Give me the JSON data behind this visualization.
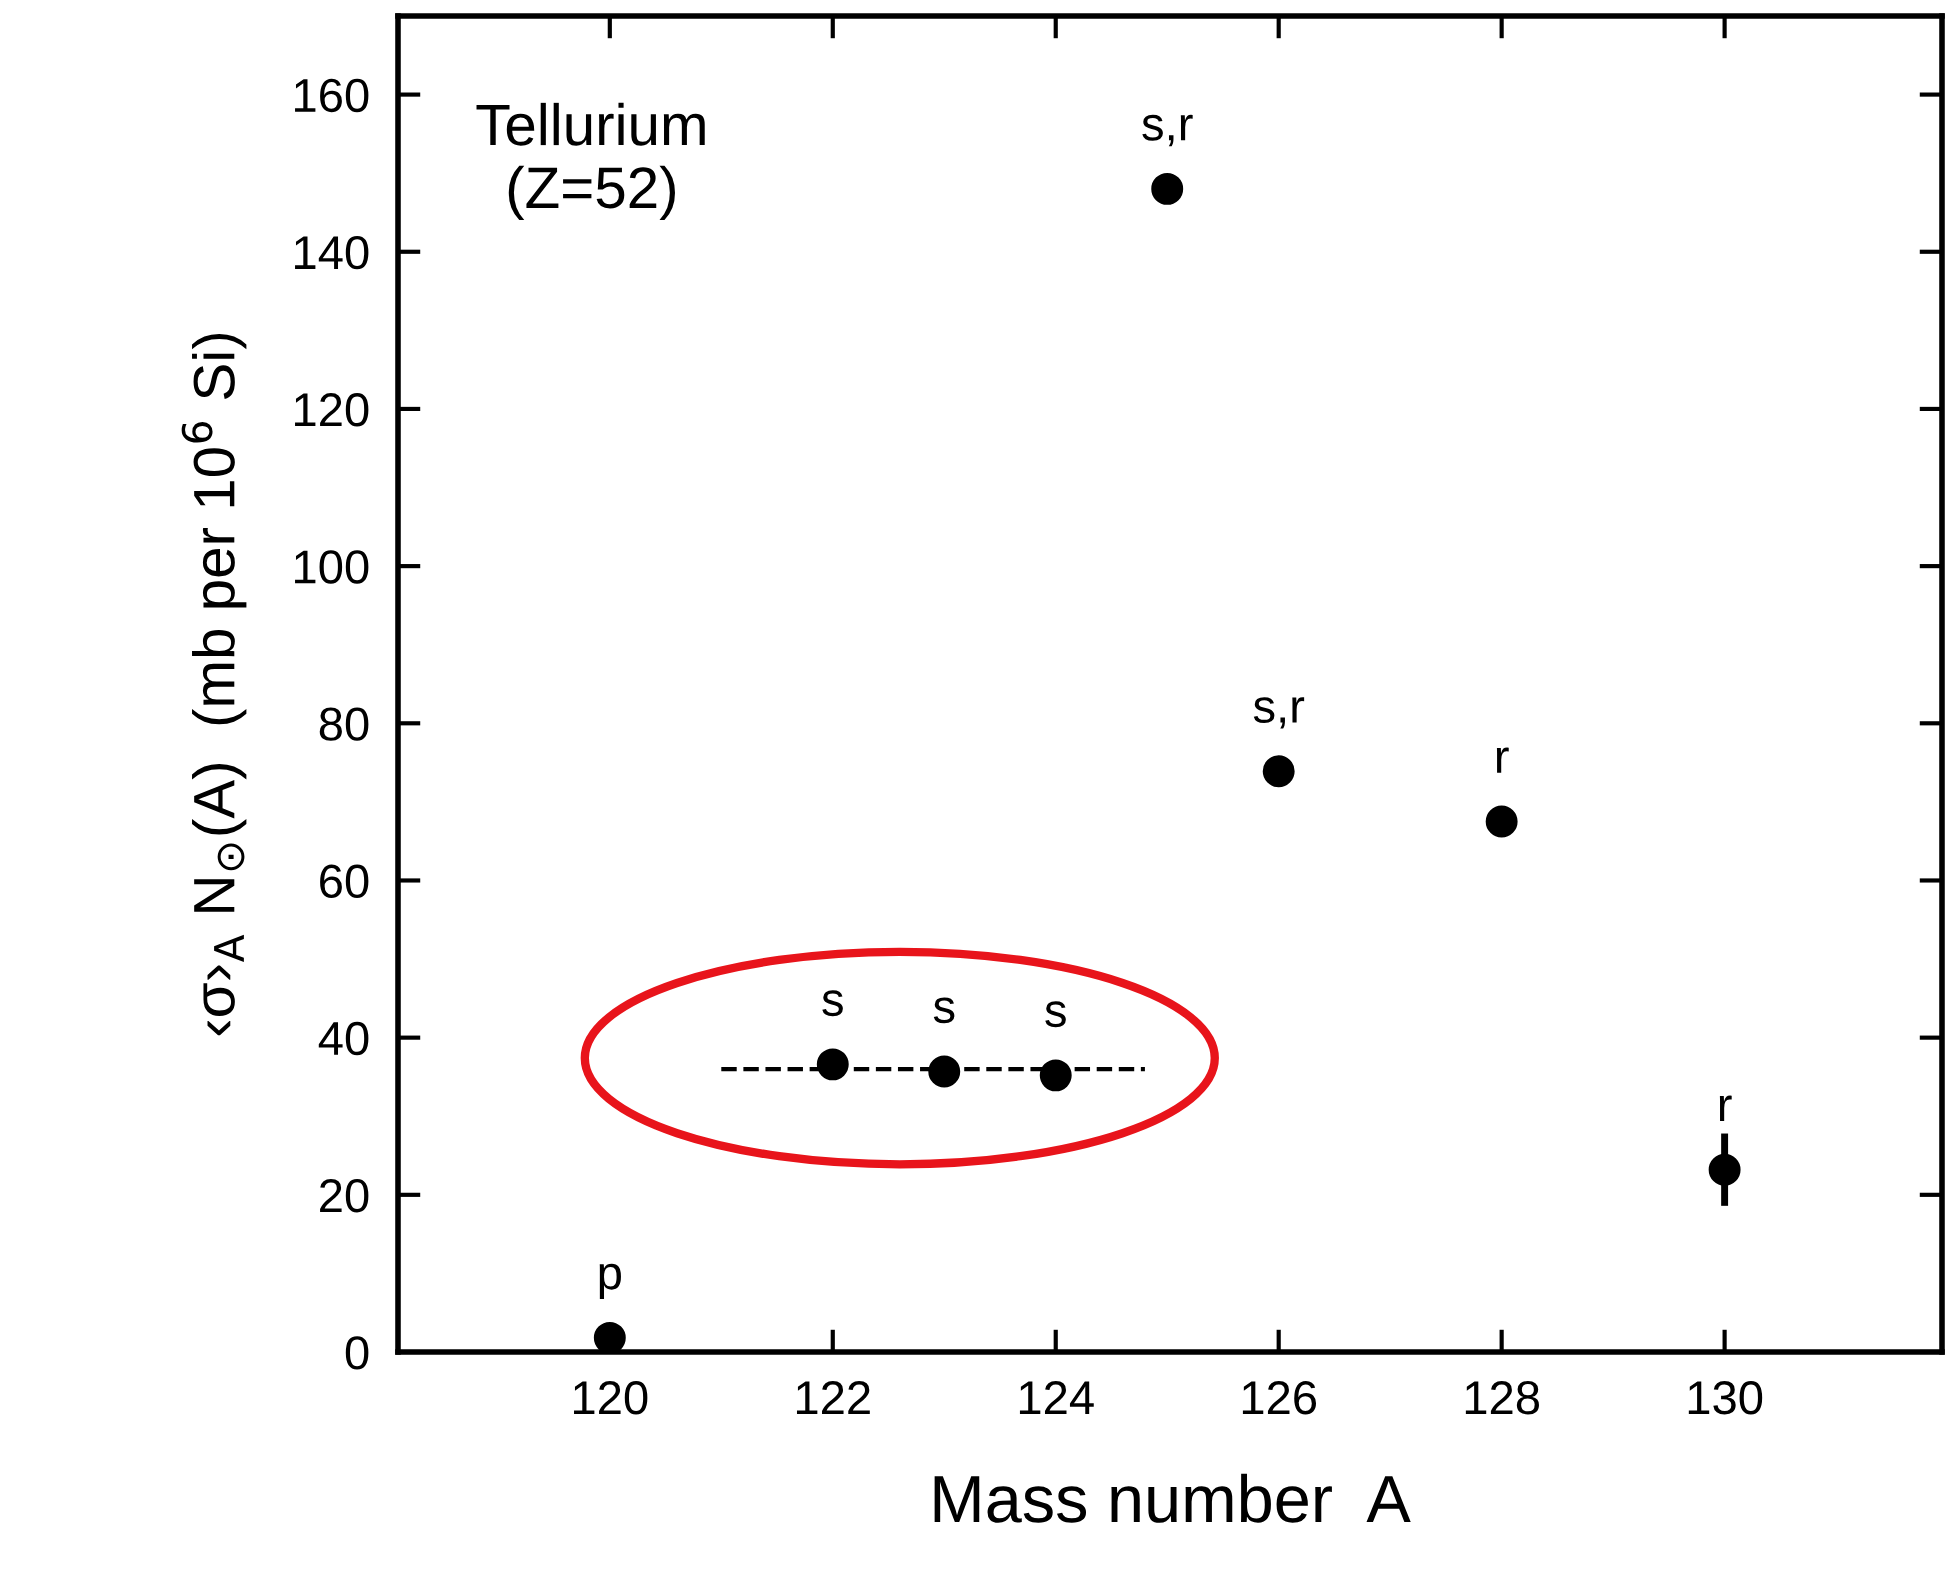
{
  "chart_data": {
    "type": "scatter",
    "xlabel": "Mass number  A",
    "ylabel": "‹σ›$_{A}$ N$_{⊙}$(A)  (mb per 10$^{6}$ Si)",
    "annotations": [
      "Tellurium\n(Z=52)"
    ],
    "series": [
      {
        "type": "scatter",
        "color": "#000000",
        "x": [
          120,
          122,
          123,
          124,
          125,
          126,
          128,
          130
        ],
        "values": [
          1.8,
          36.6,
          35.7,
          35.2,
          148,
          73.9,
          67.5,
          23.2
        ],
        "errors": [
          null,
          null,
          null,
          null,
          null,
          null,
          null,
          4.6
        ],
        "value_labels": [
          "p",
          "s",
          "s",
          "s",
          "s,r",
          "s,r",
          "r",
          "r"
        ],
        "marker": "circle"
      },
      {
        "type": "line",
        "color": "#000000",
        "x": [
          121,
          124.8
        ],
        "values": [
          36,
          36
        ],
        "line_style": "dashed",
        "marker": "none"
      }
    ],
    "xlim": [
      118.1,
      131.95
    ],
    "ylim": [
      0,
      170
    ],
    "xticks": [
      120,
      122,
      124,
      126,
      128,
      130
    ],
    "yticks": [
      0,
      20,
      40,
      60,
      80,
      100,
      120,
      140,
      160
    ],
    "grid": false,
    "legend": false
  }
}
